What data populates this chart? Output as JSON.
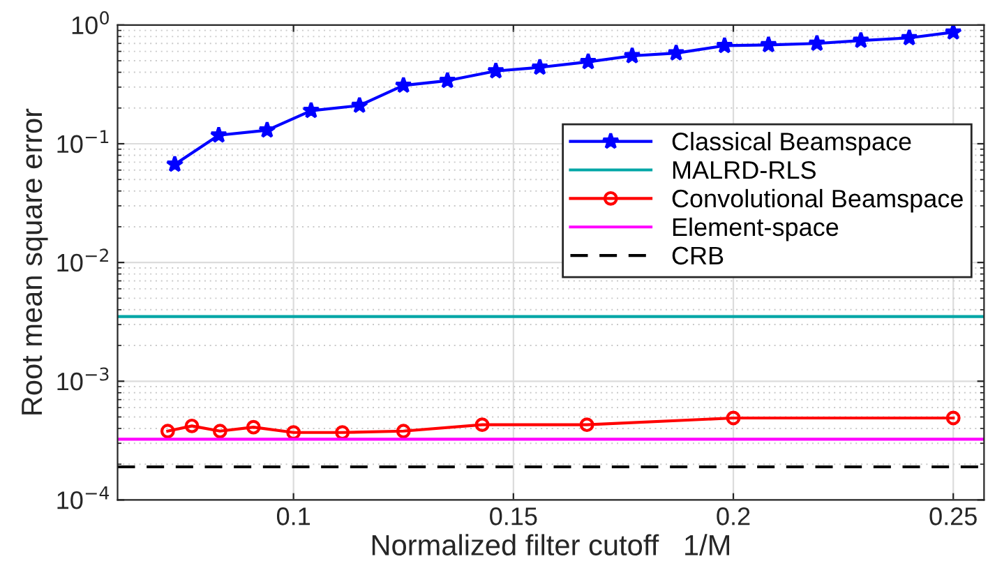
{
  "chart_data": {
    "type": "line",
    "xlabel": "Normalized filter cutoff   1/M",
    "ylabel": "Root mean square error",
    "log": "y",
    "grid": true,
    "legend": "right",
    "xlim": [
      0.06,
      0.257
    ],
    "xticks": [
      0.1,
      0.15,
      0.2,
      0.25
    ],
    "ylim": [
      0.0001,
      1
    ],
    "yticks": [
      {
        "value": 0.0001,
        "label": "10$^{−4}$"
      },
      {
        "value": 0.001,
        "label": "10$^{−3}$"
      },
      {
        "value": 0.01,
        "label": "10$^{−2}$"
      },
      {
        "value": 0.1,
        "label": "10$^{−1}$"
      },
      {
        "value": 1,
        "label": "10$^{0}$"
      }
    ],
    "series": [
      {
        "name": "Classical Beamspace",
        "color": "#0000ff",
        "marker": "star",
        "line_style": "solid",
        "x": [
          0.073,
          0.083,
          0.094,
          0.104,
          0.115,
          0.125,
          0.135,
          0.146,
          0.156,
          0.167,
          0.177,
          0.187,
          0.198,
          0.208,
          0.219,
          0.229,
          0.24,
          0.25
        ],
        "values": [
          0.067,
          0.118,
          0.13,
          0.19,
          0.21,
          0.31,
          0.34,
          0.41,
          0.44,
          0.49,
          0.55,
          0.58,
          0.67,
          0.68,
          0.7,
          0.74,
          0.78,
          0.87
        ]
      },
      {
        "name": "MALRD-RLS",
        "color": "#00a6a6",
        "marker": "none",
        "line_style": "solid",
        "x": [
          0.06,
          0.257
        ],
        "values": [
          0.0035,
          0.0035
        ]
      },
      {
        "name": "Convolutional Beamspace",
        "color": "#ff0000",
        "marker": "circle",
        "line_style": "solid",
        "x": [
          0.0714,
          0.0769,
          0.0833,
          0.0909,
          0.1,
          0.1111,
          0.125,
          0.1429,
          0.1667,
          0.2,
          0.25
        ],
        "values": [
          0.00038,
          0.00042,
          0.00038,
          0.00041,
          0.00037,
          0.00037,
          0.00038,
          0.00043,
          0.00043,
          0.00049,
          0.00049
        ]
      },
      {
        "name": "Element-space",
        "color": "#ff00ff",
        "marker": "none",
        "line_style": "solid",
        "x": [
          0.06,
          0.257
        ],
        "values": [
          0.000325,
          0.000325
        ]
      },
      {
        "name": "CRB",
        "color": "#000000",
        "marker": "none",
        "line_style": "dashed",
        "x": [
          0.06,
          0.257
        ],
        "values": [
          0.00019,
          0.00019
        ]
      }
    ]
  }
}
